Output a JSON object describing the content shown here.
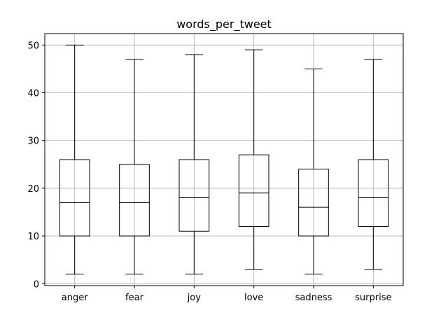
{
  "chart_data": {
    "type": "boxplot",
    "title": "words_per_tweet",
    "xlabel": "",
    "ylabel": "",
    "categories": [
      "anger",
      "fear",
      "joy",
      "love",
      "sadness",
      "surprise"
    ],
    "boxes": [
      {
        "whisker_low": 2,
        "q1": 10,
        "median": 17,
        "q3": 26,
        "whisker_high": 50
      },
      {
        "whisker_low": 2,
        "q1": 10,
        "median": 17,
        "q3": 25,
        "whisker_high": 47
      },
      {
        "whisker_low": 2,
        "q1": 11,
        "median": 18,
        "q3": 26,
        "whisker_high": 48
      },
      {
        "whisker_low": 3,
        "q1": 12,
        "median": 19,
        "q3": 27,
        "whisker_high": 49
      },
      {
        "whisker_low": 2,
        "q1": 10,
        "median": 16,
        "q3": 24,
        "whisker_high": 45
      },
      {
        "whisker_low": 3,
        "q1": 12,
        "median": 18,
        "q3": 26,
        "whisker_high": 47
      }
    ],
    "ylim": [
      -0.4,
      52.4
    ],
    "yticks": [
      0,
      10,
      20,
      30,
      40,
      50
    ],
    "grid": true,
    "colors": {
      "box": "#000000",
      "grid": "#b0b0b0",
      "axis": "#000000"
    }
  }
}
